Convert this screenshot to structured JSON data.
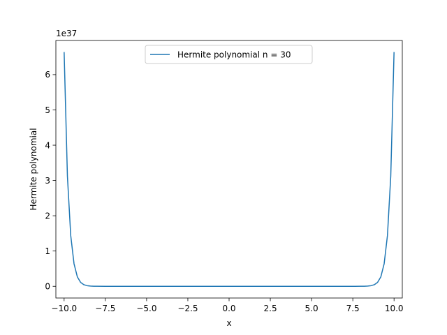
{
  "chart_data": {
    "type": "line",
    "title": "",
    "xlabel": "x",
    "ylabel": "Hermite polynomial",
    "y_offset_label": "1e37",
    "y_scale_factor": 1e+37,
    "xlim": [
      -10.5,
      10.5
    ],
    "ylim": [
      -0.3318,
      6.968
    ],
    "x_ticks": [
      -10.0,
      -7.5,
      -5.0,
      -2.5,
      0.0,
      2.5,
      5.0,
      7.5,
      10.0
    ],
    "x_tick_labels": [
      "−10.0",
      "−7.5",
      "−5.0",
      "−2.5",
      "0.0",
      "2.5",
      "5.0",
      "7.5",
      "10.0"
    ],
    "y_ticks": [
      0,
      1,
      2,
      3,
      4,
      5,
      6
    ],
    "y_tick_labels": [
      "0",
      "1",
      "2",
      "3",
      "4",
      "5",
      "6"
    ],
    "grid": false,
    "legend_position": "upper-center",
    "series": [
      {
        "name": "Hermite polynomial n = 30",
        "color": "#1f77b4",
        "x": [
          -10.0,
          -9.8,
          -9.6,
          -9.4,
          -9.2,
          -9.0,
          -8.8,
          -8.6,
          -8.4,
          -8.2,
          -8.0,
          -7.5,
          -7.0,
          -6.0,
          -5.0,
          -4.0,
          -3.0,
          -2.0,
          -1.0,
          0.0,
          1.0,
          2.0,
          3.0,
          4.0,
          5.0,
          6.0,
          7.0,
          7.5,
          8.0,
          8.2,
          8.4,
          8.6,
          8.8,
          9.0,
          9.2,
          9.4,
          9.6,
          9.8,
          10.0
        ],
        "y": [
          6.64,
          3.12,
          1.44,
          0.64,
          0.27,
          0.11,
          0.045,
          0.018,
          0.007,
          0.003,
          0.001,
          0.0002,
          0.0,
          0.0,
          0.0,
          0.0,
          0.0,
          0.0,
          0.0,
          0.0,
          0.0,
          0.0,
          0.0,
          0.0,
          0.0,
          0.0,
          0.0,
          0.0002,
          0.001,
          0.003,
          0.007,
          0.018,
          0.045,
          0.11,
          0.27,
          0.64,
          1.44,
          3.12,
          6.64
        ]
      }
    ]
  }
}
